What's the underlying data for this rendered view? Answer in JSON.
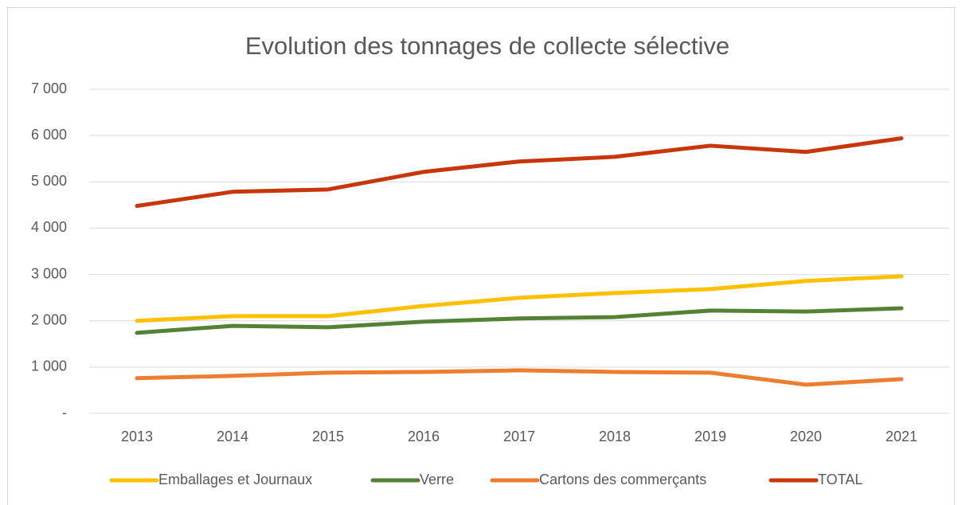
{
  "chart_data": {
    "type": "line",
    "title": "Evolution des tonnages de collecte sélective",
    "categories": [
      "2013",
      "2014",
      "2015",
      "2016",
      "2017",
      "2018",
      "2019",
      "2020",
      "2021"
    ],
    "series": [
      {
        "name": "Emballages et Journaux",
        "color": "#FFC000",
        "values": [
          2000,
          2100,
          2100,
          2320,
          2495,
          2600,
          2685,
          2860,
          2960
        ]
      },
      {
        "name": "Verre",
        "color": "#548235",
        "values": [
          1740,
          1890,
          1860,
          1980,
          2050,
          2080,
          2220,
          2200,
          2270
        ]
      },
      {
        "name": "Cartons des commerçants",
        "color": "#ED7D31",
        "values": [
          760,
          810,
          880,
          895,
          930,
          895,
          880,
          620,
          740
        ]
      },
      {
        "name": "TOTAL",
        "color": "#C8370B",
        "values": [
          4480,
          4785,
          4836,
          5215,
          5440,
          5540,
          5780,
          5645,
          5940
        ]
      }
    ],
    "ylim": [
      0,
      7000
    ],
    "yticks": [
      {
        "value": 0,
        "label": "-"
      },
      {
        "value": 1000,
        "label": "1 000"
      },
      {
        "value": 2000,
        "label": "2 000"
      },
      {
        "value": 3000,
        "label": "3 000"
      },
      {
        "value": 4000,
        "label": "4 000"
      },
      {
        "value": 5000,
        "label": "5 000"
      },
      {
        "value": 6000,
        "label": "6 000"
      },
      {
        "value": 7000,
        "label": "7 000"
      }
    ],
    "grid": true,
    "legend": "bottom"
  }
}
